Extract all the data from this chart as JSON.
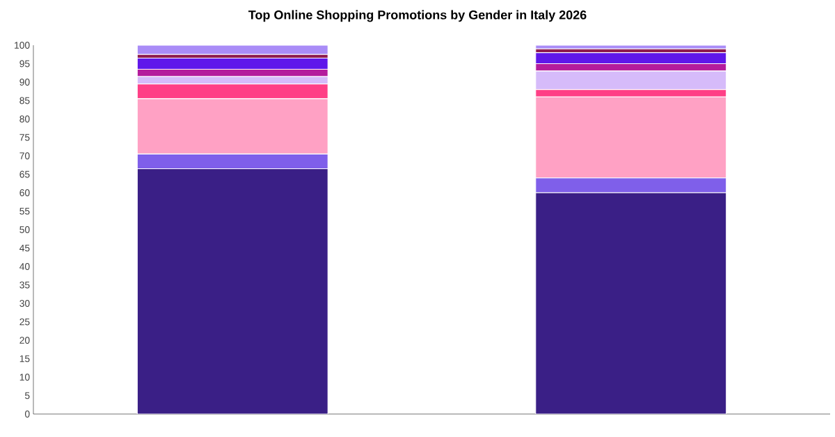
{
  "chart_data": {
    "type": "bar",
    "title": "Top Online Shopping Promotions by Gender in Italy 2026",
    "categories": [
      null,
      null
    ],
    "stacked": true,
    "ylim": [
      0,
      100
    ],
    "yticks": [
      0,
      5,
      10,
      15,
      20,
      25,
      30,
      35,
      40,
      45,
      50,
      55,
      60,
      65,
      70,
      75,
      80,
      85,
      90,
      95,
      100
    ],
    "series": [
      {
        "color": "#3a1f86",
        "values": [
          66.5,
          60
        ]
      },
      {
        "color": "#7f5fea",
        "values": [
          4,
          4
        ]
      },
      {
        "color": "#ffa1c4",
        "values": [
          15,
          22
        ]
      },
      {
        "color": "#ff3f86",
        "values": [
          4,
          2
        ]
      },
      {
        "color": "#d6bbfa",
        "values": [
          2,
          5
        ]
      },
      {
        "color": "#b41c9c",
        "values": [
          2,
          2
        ]
      },
      {
        "color": "#5f17ea",
        "values": [
          3,
          3
        ]
      },
      {
        "color": "#8e1b4f",
        "values": [
          1,
          1
        ]
      },
      {
        "color": "#a98cf7",
        "values": [
          2.5,
          1
        ]
      }
    ]
  }
}
